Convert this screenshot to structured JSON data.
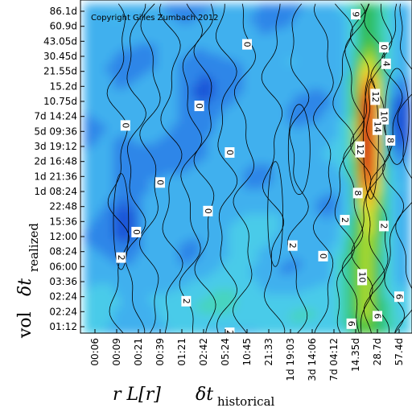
{
  "chart_data": {
    "type": "heatmap",
    "title": "",
    "copyright": "Copyright Gilles Zumbach 2012",
    "x_axis": {
      "label_parts": [
        "r L[r]",
        "δt",
        "historical"
      ],
      "ticks": [
        "00:06",
        "00:09",
        "00:21",
        "00:39",
        "01:21",
        "02:42",
        "05:24",
        "10:45",
        "21:33",
        "1d 19:03",
        "3d 14:06",
        "7d 04:12",
        "14.35d",
        "28.7d",
        "57.4d"
      ]
    },
    "y_axis": {
      "label_parts": [
        "vol",
        "δt",
        "realized"
      ],
      "ticks": [
        "86.1d",
        "60.9d",
        "43.05d",
        "30.45d",
        "21.55d",
        "15.2d",
        "10.75d",
        "7d 14:24",
        "5d 09:36",
        "3d 19:12",
        "2d 16:48",
        "1d 21:36",
        "1d 08:24",
        "22:48",
        "15:36",
        "12:00",
        "08:24",
        "06:00",
        "03:36",
        "02:24",
        "02:24",
        "01:12"
      ]
    },
    "grid": false,
    "colorscale": [
      "#1e56d8",
      "#2f86e8",
      "#3fb0ee",
      "#49cbe9",
      "#46d4bf",
      "#35c98f",
      "#2ebc5a",
      "#58c63c",
      "#a3d733",
      "#e4e432",
      "#f3c22a",
      "#f08b22",
      "#e04b1c",
      "#d42a14"
    ],
    "contour_labels": [
      {
        "text": "0",
        "x": 1.4,
        "y": 7.6
      },
      {
        "text": "0",
        "x": 4.8,
        "y": 6.3
      },
      {
        "text": "0",
        "x": 7.0,
        "y": 2.2
      },
      {
        "text": "0",
        "x": 6.2,
        "y": 9.4
      },
      {
        "text": "0",
        "x": 3.0,
        "y": 11.4
      },
      {
        "text": "0",
        "x": 5.2,
        "y": 13.3
      },
      {
        "text": "0",
        "x": 10.5,
        "y": 16.3
      },
      {
        "text": "0",
        "x": 13.3,
        "y": 2.4
      },
      {
        "text": "0",
        "x": 1.9,
        "y": 14.7
      },
      {
        "text": "2",
        "x": 1.2,
        "y": 16.4
      },
      {
        "text": "2",
        "x": 4.2,
        "y": 19.3
      },
      {
        "text": "2",
        "x": 6.2,
        "y": 21.4
      },
      {
        "text": "2",
        "x": 9.1,
        "y": 15.6
      },
      {
        "text": "2",
        "x": 11.5,
        "y": 13.9
      },
      {
        "text": "4",
        "x": 13.4,
        "y": 3.5
      },
      {
        "text": "4",
        "x": 14.9,
        "y": 2.5
      },
      {
        "text": "6",
        "x": 11.8,
        "y": 20.8
      },
      {
        "text": "6",
        "x": 13.0,
        "y": 20.3
      },
      {
        "text": "6",
        "x": 14.0,
        "y": 19.0
      },
      {
        "text": "8",
        "x": 12.1,
        "y": 12.1
      },
      {
        "text": "8",
        "x": 13.6,
        "y": 8.6
      },
      {
        "text": "9",
        "x": 12.0,
        "y": 0.2
      },
      {
        "text": "10",
        "x": 12.3,
        "y": 17.7
      },
      {
        "text": "10",
        "x": 13.3,
        "y": 7.0
      },
      {
        "text": "12",
        "x": 12.2,
        "y": 9.2
      },
      {
        "text": "12",
        "x": 12.9,
        "y": 5.7
      },
      {
        "text": "14",
        "x": 13.0,
        "y": 7.7
      },
      {
        "text": "2",
        "x": 14.8,
        "y": 10.5
      },
      {
        "text": "2",
        "x": 13.3,
        "y": 14.3
      },
      {
        "text": "2",
        "x": 15.3,
        "y": 8.6
      }
    ]
  }
}
